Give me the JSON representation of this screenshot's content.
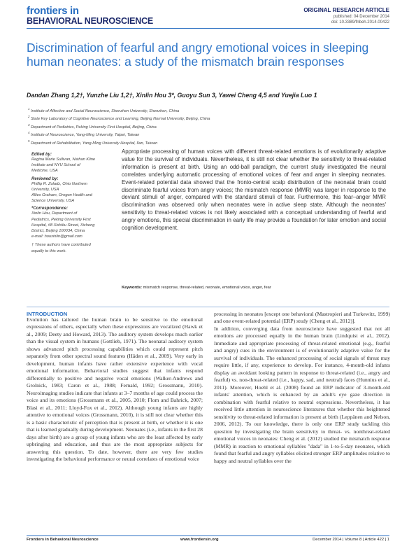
{
  "journal": {
    "logo_line1": "frontiers in",
    "logo_line2": "BEHAVIORAL NEUROSCIENCE"
  },
  "article": {
    "type": "ORIGINAL RESEARCH ARTICLE",
    "published": "published: 04 December 2014",
    "doi": "doi: 10.3389/fnbeh.2014.00422",
    "title": "Discrimination of fearful and angry emotional voices in sleeping human neonates: a study of the mismatch brain responses",
    "authors": "Dandan Zhang 1,2†, Yunzhe Liu 1,2†, Xinlin Hou 3*, Guoyu Sun 3, Yawei Cheng 4,5 and Yuejia Luo 1"
  },
  "affiliations": [
    {
      "num": "1",
      "text": "Institute of Affective and Social Neuroscience, Shenzhen University, Shenzhen, China"
    },
    {
      "num": "2",
      "text": "State Key Laboratory of Cognitive Neuroscience and Learning, Beijing Normal University, Beijing, China"
    },
    {
      "num": "3",
      "text": "Department of Pediatrics, Peking University First Hospital, Beijing, China"
    },
    {
      "num": "4",
      "text": "Institute of Neuroscience, Yang-Ming University, Taipei, Taiwan"
    },
    {
      "num": "5",
      "text": "Department of Rehabilitation, Yang-Ming University Hospital, Ilan, Taiwan"
    }
  ],
  "sidebar": {
    "edited_by_label": "Edited by:",
    "edited_by": "Regina Marie Sullivan, Nathan Kline\nInstitute and NYU School of\nMedicine, USA",
    "reviewed_by_label": "Reviewed by:",
    "reviewer1": "Phillip R. Zoladz, Ohio Northern\nUniversity, USA",
    "reviewer2": "Allies Graham, Oregon Health and\nScience University, USA",
    "correspondence_label": "*Correspondence:",
    "correspondence": "Xinlin Hou, Department of\nPediatrics, Peking University First\nHospital, #8 Xishiku Street, Xicheng\nDistrict, Beijing 100034, China\ne-mail: houxinlin@gmail.com",
    "note": "† These authors have contributed\nequally to this work."
  },
  "abstract": "Appropriate processing of human voices with different threat-related emotions is of evolutionarily adaptive value for the survival of individuals. Nevertheless, it is still not clear whether the sensitivity to threat-related information is present at birth. Using an odd-ball paradigm, the current study investigated the neural correlates underlying automatic processing of emotional voices of fear and anger in sleeping neonates. Event-related potential data showed that the fronto-central scalp distribution of the neonatal brain could discriminate fearful voices from angry voices; the mismatch response (MMR) was larger in response to the deviant stimuli of anger, compared with the standard stimuli of fear. Furthermore, this fear–anger MMR discrimination was observed only when neonates were in active sleep state. Although the neonates' sensitivity to threat-related voices is not likely associated with a conceptual understanding of fearful and angry emotions, this special discrimination in early life may provide a foundation for later emotion and social cognition development.",
  "keywords_label": "Keywords:",
  "keywords": "mismatch response, threat-related, neonate, emotional voice, anger, fear",
  "intro_heading": "INTRODUCTION",
  "col1": "Evolution has tailored the human brain to be sensitive to the emotional expressions of others, especially when these expressions are vocalized (Hawk et al., 2009; Deety and Howard, 2013). The auditory system develops much earlier than the visual system in humans (Gottlieb, 1971). The neonatal auditory system shows advanced pitch processing capabilities which could represent pitch separately from other spectral sound features (Häden et al., 2009). Very early in development, human infants have rather extensive experience with vocal emotional information. Behavioral studies suggest that infants respond differentially to positive and negative vocal emotions (Walker-Andrews and Grolnick, 1983; Caron et al., 1988; Fernald, 1992; Grossmann, 2010). Neuroimaging studies indicate that infants at 3–7 months of age could process the voice and its emotions (Grossmann et al., 2005, 2010; Flom and Bahrick, 2007; Blasi et al., 2011; Lloyd-Fox et al., 2012). Although young infants are highly attentive to emotional voices (Grossmann, 2010), it is still not clear whether this is a basic characteristic of perception that is present at birth, or whether it is one that is learned gradually during development. Neonates (i.e., infants in the first 28 days after birth) are a group of young infants who are the least affected by early upbringing and education, and thus are the most appropriate subjects for answering this question. To date, however, there are very few studies investigating the behavioral performance or neural correlates of emotional voice",
  "col2": "processing in neonates [except one behavioral (Mastropieri and Turkewitz, 1999) and one event-related potential (ERP) study (Cheng et al., 2012)].\n    In addition, converging data from neuroscience have suggested that not all emotions are processed equally in the human brain (Lindquist et al., 2012). Immediate and appropriate processing of threat-related emotional (e.g., fearful and angry) cues in the environment is of evolutionarily adaptive value for the survival of individuals. The enhanced processing of social signals of threat may require little, if any, experience to develop. For instance, 4-month-old infants display an avoidant looking pattern in response to threat-related (i.e., angry and fearful) vs. non-threat-related (i.e., happy, sad, and neutral) faces (Hunnius et al., 2011). Moreover, Hoehl et al. (2008) found an ERP indicator of 3-month-old infants' attention, which is enhanced by an adult's eye gaze direction in combination with fearful relative to neutral expressions. Nevertheless, it has received little attention in neuroscience literatures that whether this heightened sensitivity to threat-related information is present at birth (Leppänen and Nelson, 2006, 2012). To our knowledge, there is only one ERP study tackling this question by investigating the brain sensitivity to threat- vs. nonthreat-related emotional voices in neonates: Cheng et al. (2012) studied the mismatch response (MMR) in reaction to emotional syllables \"dada\" in 1-to-5-day neonates, which found that fearful and angry syllables elicited stronger ERP amplitudes relative to happy and neutral syllables over the",
  "footer": {
    "left": "Frontiers in Behavioral Neuroscience",
    "middle": "www.frontiersin.org",
    "right": "December 2014 | Volume 8 | Article 422 | 1"
  }
}
